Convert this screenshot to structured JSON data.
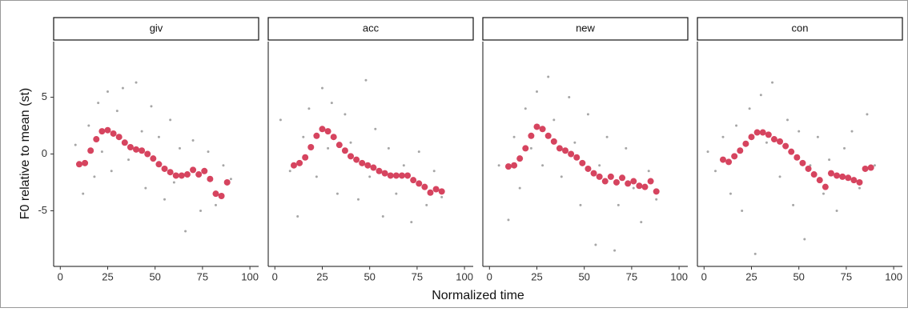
{
  "xlabel": "Normalized time",
  "ylabel": "F0 relative to mean (st)",
  "chart_data": [
    {
      "type": "scatter",
      "title": "giv",
      "xlim": [
        -3.5,
        104.6
      ],
      "ylim": [
        -9.9,
        9.9
      ],
      "xticks": [
        0,
        25,
        50,
        75,
        100
      ],
      "yticks": [
        -5,
        0,
        5
      ],
      "point_color": "#a6a6a6",
      "mean_color": "#d6445f",
      "points": {
        "x": [
          8,
          12,
          15,
          18,
          20,
          22,
          25,
          27,
          30,
          33,
          36,
          40,
          43,
          45,
          48,
          52,
          55,
          58,
          60,
          63,
          66,
          70,
          74,
          78,
          82,
          86,
          90
        ],
        "y": [
          0.8,
          -3.5,
          2.5,
          -2.0,
          4.5,
          0.2,
          5.5,
          -1.5,
          3.8,
          5.8,
          -0.5,
          6.3,
          2.0,
          -3.0,
          4.2,
          1.5,
          -4.0,
          3.0,
          -2.5,
          0.5,
          -6.8,
          1.2,
          -5.0,
          0.2,
          -4.5,
          -1.0,
          -2.2
        ]
      },
      "means": {
        "x": [
          10,
          13,
          16,
          19,
          22,
          25,
          28,
          31,
          34,
          37,
          40,
          43,
          46,
          49,
          52,
          55,
          58,
          61,
          64,
          67,
          70,
          73,
          76,
          79,
          82,
          85,
          88
        ],
        "y": [
          -0.9,
          -0.8,
          0.3,
          1.3,
          2.0,
          2.1,
          1.8,
          1.5,
          1.0,
          0.6,
          0.4,
          0.3,
          0,
          -0.4,
          -0.9,
          -1.3,
          -1.6,
          -1.9,
          -1.9,
          -1.8,
          -1.4,
          -1.8,
          -1.5,
          -2.2,
          -3.5,
          -3.7,
          -2.5
        ]
      }
    },
    {
      "type": "scatter",
      "title": "acc",
      "xlim": [
        -3.5,
        104.6
      ],
      "ylim": [
        -9.9,
        9.9
      ],
      "xticks": [
        0,
        25,
        50,
        75,
        100
      ],
      "point_color": "#a6a6a6",
      "mean_color": "#d6445f",
      "points": {
        "x": [
          3,
          8,
          12,
          15,
          18,
          22,
          25,
          28,
          30,
          33,
          37,
          40,
          44,
          48,
          50,
          53,
          57,
          60,
          64,
          68,
          72,
          76,
          80,
          84,
          88
        ],
        "y": [
          3.0,
          -1.5,
          -5.5,
          1.5,
          4.0,
          -2.0,
          5.8,
          0.5,
          4.5,
          -3.5,
          3.5,
          1.0,
          -4.0,
          6.5,
          -2.0,
          2.2,
          -5.5,
          0.5,
          -3.5,
          -1.0,
          -6.0,
          0.2,
          -4.5,
          -1.5,
          -3.8
        ]
      },
      "means": {
        "x": [
          10,
          13,
          16,
          19,
          22,
          25,
          28,
          31,
          34,
          37,
          40,
          43,
          46,
          49,
          52,
          55,
          58,
          61,
          64,
          67,
          70,
          73,
          76,
          79,
          82,
          85,
          88
        ],
        "y": [
          -1.0,
          -0.8,
          -0.3,
          0.6,
          1.6,
          2.2,
          2.0,
          1.5,
          0.8,
          0.3,
          -0.2,
          -0.5,
          -0.8,
          -1.0,
          -1.2,
          -1.5,
          -1.7,
          -1.9,
          -1.9,
          -1.9,
          -1.9,
          -2.3,
          -2.6,
          -2.9,
          -3.4,
          -3.1,
          -3.3
        ]
      }
    },
    {
      "type": "scatter",
      "title": "new",
      "xlim": [
        -3.5,
        104.6
      ],
      "ylim": [
        -9.9,
        9.9
      ],
      "xticks": [
        0,
        25,
        50,
        75,
        100
      ],
      "point_color": "#a6a6a6",
      "mean_color": "#d6445f",
      "points": {
        "x": [
          5,
          10,
          13,
          16,
          19,
          22,
          25,
          28,
          31,
          34,
          38,
          42,
          45,
          48,
          52,
          56,
          58,
          62,
          66,
          68,
          72,
          76,
          80,
          84,
          88
        ],
        "y": [
          -1.0,
          -5.8,
          1.5,
          -3.0,
          4.0,
          0.5,
          5.5,
          -1.0,
          6.8,
          3.0,
          -2.0,
          5.0,
          1.0,
          -4.5,
          3.5,
          -8.0,
          -1.0,
          1.5,
          -8.5,
          -4.5,
          0.5,
          -3.0,
          -6.0,
          -1.5,
          -4.0
        ]
      },
      "means": {
        "x": [
          10,
          13,
          16,
          19,
          22,
          25,
          28,
          31,
          34,
          37,
          40,
          43,
          46,
          49,
          52,
          55,
          58,
          61,
          64,
          67,
          70,
          73,
          76,
          79,
          82,
          85,
          88
        ],
        "y": [
          -1.1,
          -1.0,
          -0.4,
          0.5,
          1.6,
          2.4,
          2.2,
          1.6,
          1.1,
          0.5,
          0.3,
          0,
          -0.3,
          -0.8,
          -1.3,
          -1.7,
          -2.0,
          -2.4,
          -2.0,
          -2.5,
          -2.1,
          -2.6,
          -2.4,
          -2.8,
          -2.9,
          -2.4,
          -3.3
        ]
      }
    },
    {
      "type": "scatter",
      "title": "con",
      "xlim": [
        -3.5,
        104.6
      ],
      "ylim": [
        -9.9,
        9.9
      ],
      "xticks": [
        0,
        25,
        50,
        75,
        100
      ],
      "point_color": "#a6a6a6",
      "mean_color": "#d6445f",
      "points": {
        "x": [
          2,
          6,
          10,
          14,
          17,
          20,
          24,
          27,
          30,
          33,
          36,
          40,
          44,
          47,
          50,
          53,
          56,
          60,
          63,
          66,
          70,
          74,
          78,
          82,
          86,
          90
        ],
        "y": [
          0.2,
          -1.5,
          1.5,
          -3.5,
          2.5,
          -5.0,
          4.0,
          -8.8,
          5.2,
          1.0,
          6.3,
          -2.0,
          3.0,
          -4.5,
          2.0,
          -7.5,
          -1.0,
          1.5,
          -3.5,
          -0.5,
          -5.0,
          0.5,
          2.0,
          -3.0,
          3.5,
          -1.0
        ]
      },
      "means": {
        "x": [
          10,
          13,
          16,
          19,
          22,
          25,
          28,
          31,
          34,
          37,
          40,
          43,
          46,
          49,
          52,
          55,
          58,
          61,
          64,
          67,
          70,
          73,
          76,
          79,
          82,
          85,
          88
        ],
        "y": [
          -0.5,
          -0.7,
          -0.2,
          0.3,
          0.9,
          1.5,
          1.9,
          1.9,
          1.7,
          1.3,
          1.1,
          0.7,
          0.2,
          -0.3,
          -0.8,
          -1.3,
          -1.8,
          -2.3,
          -2.9,
          -1.7,
          -1.9,
          -2.0,
          -2.1,
          -2.3,
          -2.5,
          -1.3,
          -1.2
        ]
      }
    }
  ]
}
